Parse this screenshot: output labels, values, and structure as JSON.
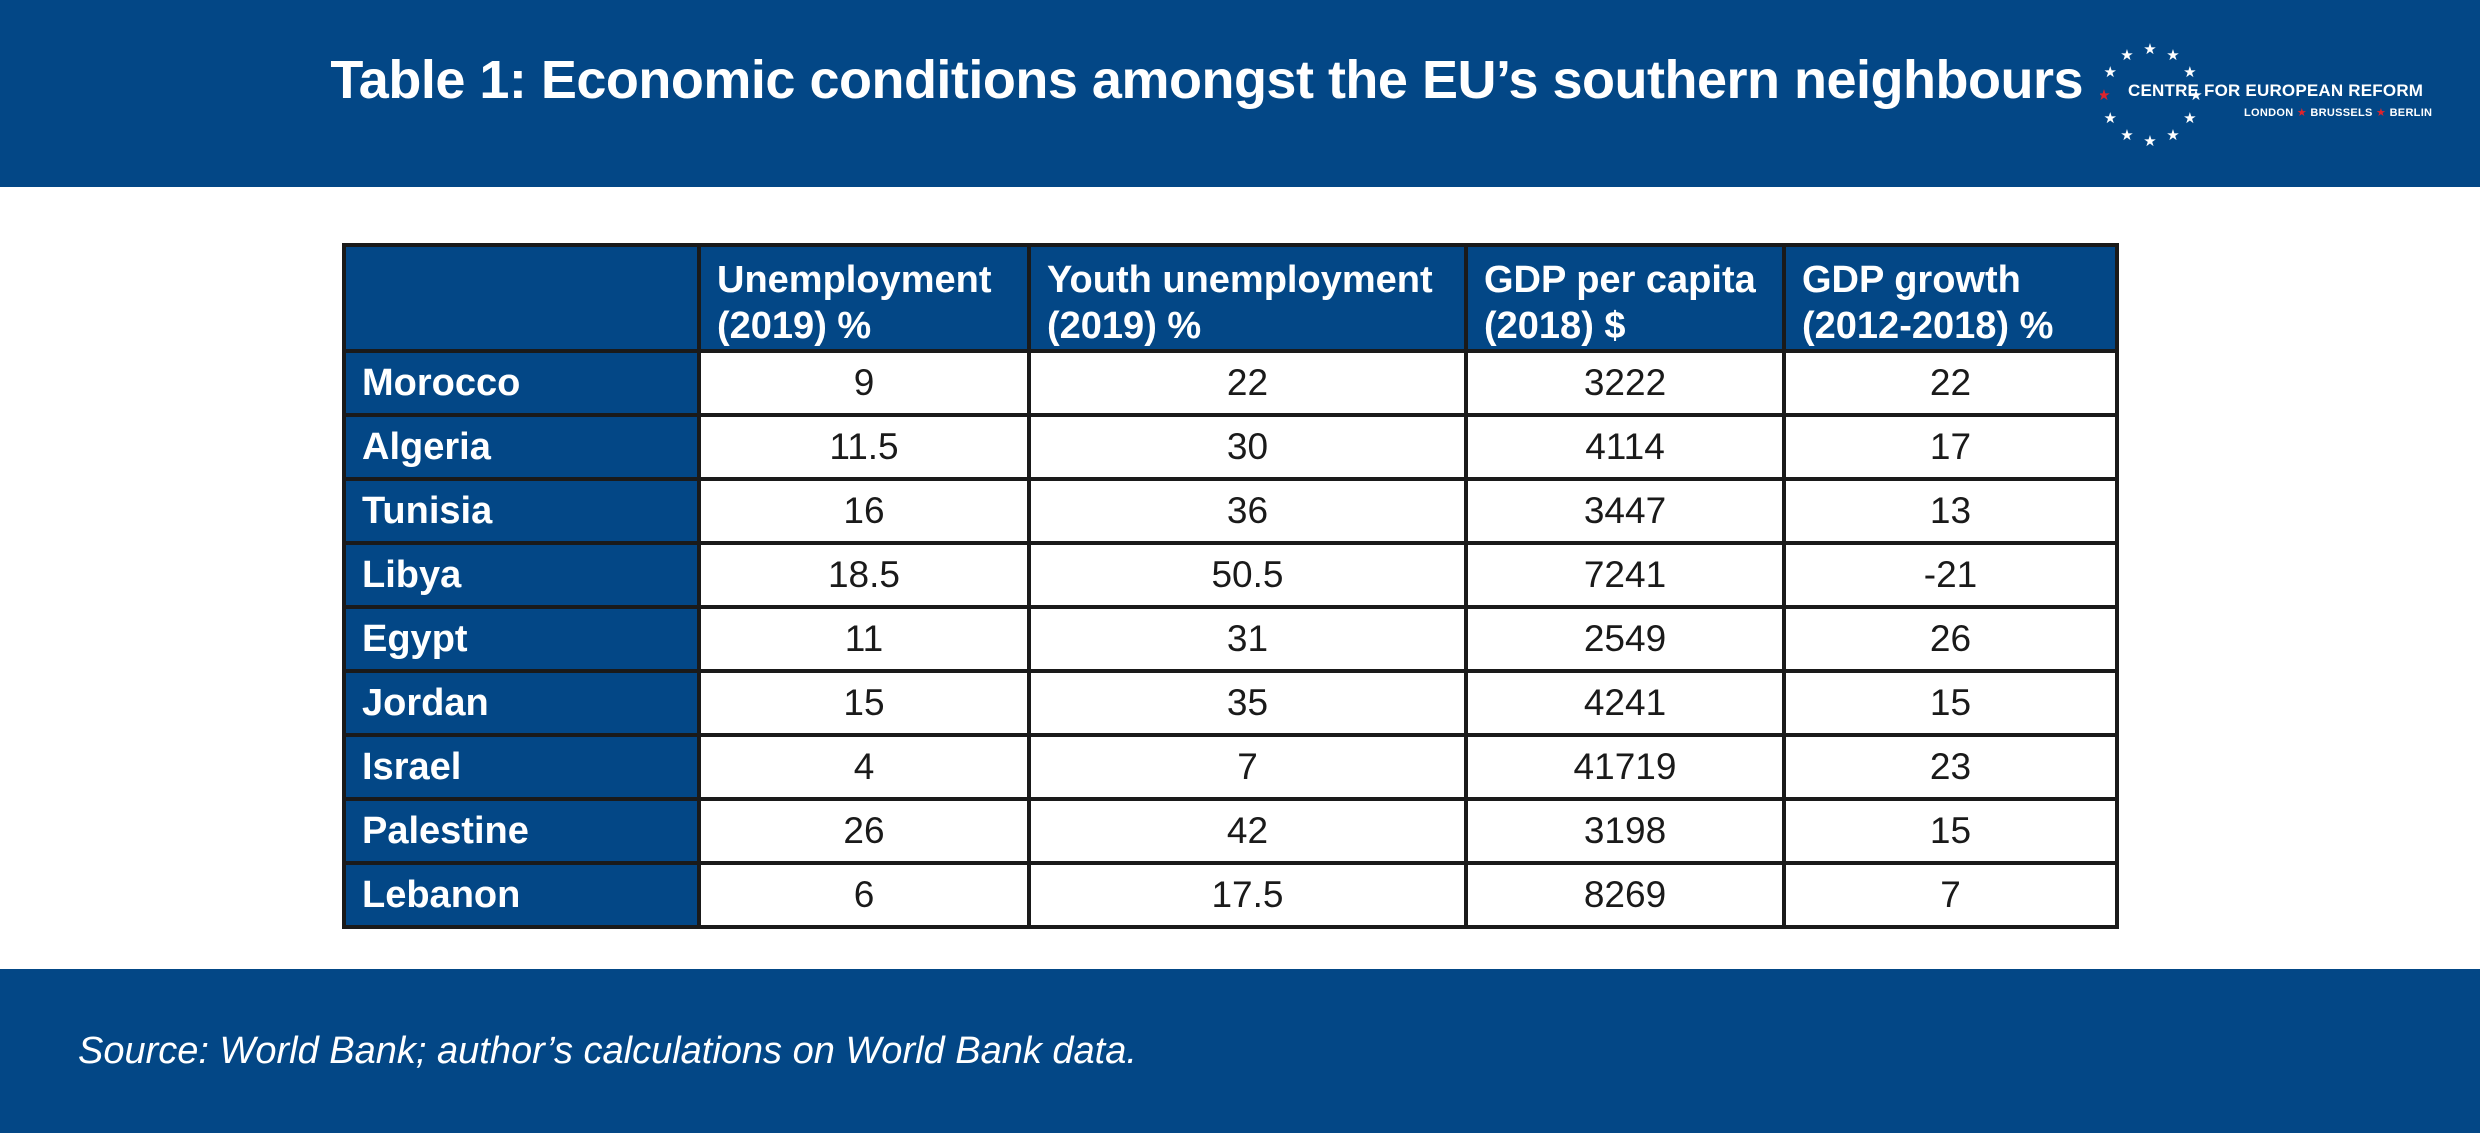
{
  "title": "Table 1: Economic conditions amongst the EU’s southern neighbours",
  "logo": {
    "name": "CENTRE FOR EUROPEAN REFORM",
    "cities": [
      "LONDON",
      "BRUSSELS",
      "BERLIN"
    ]
  },
  "source": "Source: World Bank; author’s calculations on World Bank data.",
  "colors": {
    "brand_blue": "#034786",
    "star_red": "#e0242c",
    "text": "#1a1a1a"
  },
  "chart_data": {
    "type": "table",
    "title": "Table 1: Economic conditions amongst the EU’s southern neighbours",
    "columns": [
      "",
      "Unemployment (2019) %",
      "Youth unemployment (2019) %",
      "GDP per capita (2018) $",
      "GDP growth (2012-2018) %"
    ],
    "rows": [
      {
        "country": "Morocco",
        "values": [
          "9",
          "22",
          "3222",
          "22"
        ]
      },
      {
        "country": "Algeria",
        "values": [
          "11.5",
          "30",
          "4114",
          "17"
        ]
      },
      {
        "country": "Tunisia",
        "values": [
          "16",
          "36",
          "3447",
          "13"
        ]
      },
      {
        "country": "Libya",
        "values": [
          "18.5",
          "50.5",
          "7241",
          "-21"
        ]
      },
      {
        "country": "Egypt",
        "values": [
          "11",
          "31",
          "2549",
          "26"
        ]
      },
      {
        "country": "Jordan",
        "values": [
          "15",
          "35",
          "4241",
          "15"
        ]
      },
      {
        "country": "Israel",
        "values": [
          "4",
          "7",
          "41719",
          "23"
        ]
      },
      {
        "country": "Palestine",
        "values": [
          "26",
          "42",
          "3198",
          "15"
        ]
      },
      {
        "country": "Lebanon",
        "values": [
          "6",
          "17.5",
          "8269",
          "7"
        ]
      }
    ]
  }
}
